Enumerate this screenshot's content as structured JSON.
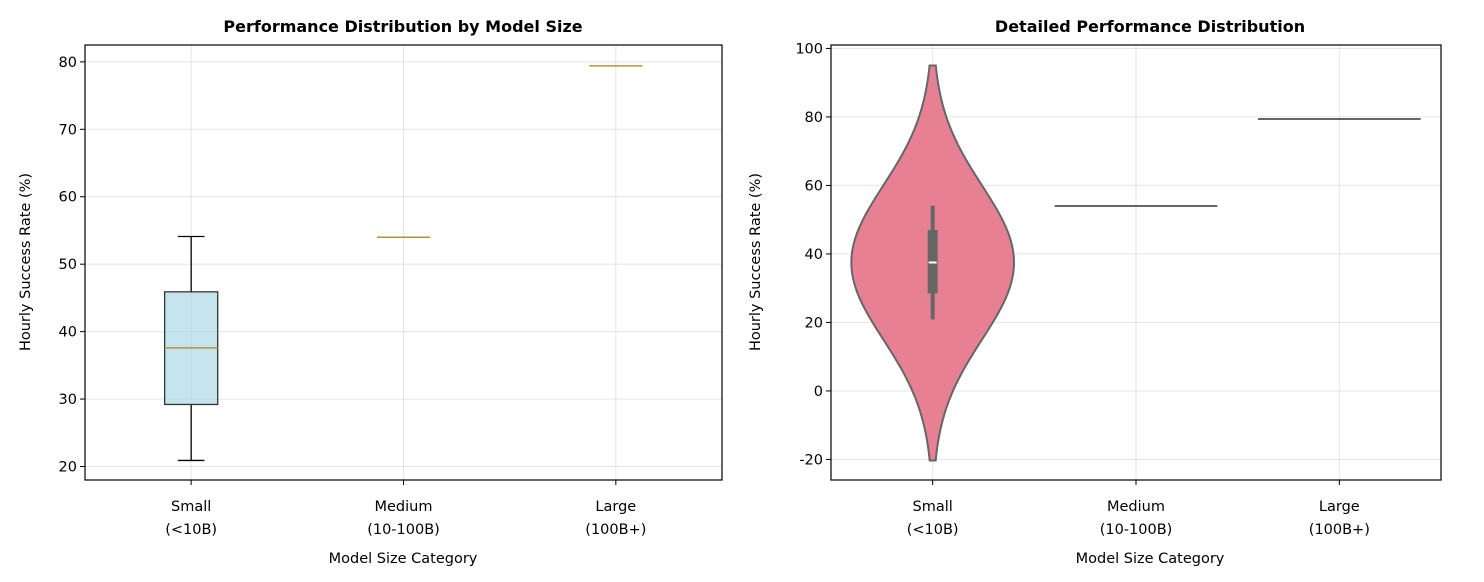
{
  "chart_data": [
    {
      "type": "box",
      "title": "Performance Distribution by Model Size",
      "xlabel": "Model Size Category",
      "ylabel": "Hourly Success Rate (%)",
      "ylim": [
        18,
        82.5
      ],
      "yticks": [
        20,
        30,
        40,
        50,
        60,
        70,
        80
      ],
      "categories": [
        {
          "label_line1": "Small",
          "label_line2": "(<10B)"
        },
        {
          "label_line1": "Medium",
          "label_line2": "(10-100B)"
        },
        {
          "label_line1": "Large",
          "label_line2": "(100B+)"
        }
      ],
      "boxes": [
        {
          "whisker_low": 20.9,
          "q1": 29.2,
          "median": 37.6,
          "q3": 45.9,
          "whisker_high": 54.1
        },
        {
          "whisker_low": 54.0,
          "q1": 54.0,
          "median": 54.0,
          "q3": 54.0,
          "whisker_high": 54.0
        },
        {
          "whisker_low": 79.4,
          "q1": 79.4,
          "median": 79.4,
          "q3": 79.4,
          "whisker_high": 79.4
        }
      ],
      "box_color": "#add8e6",
      "median_color": "#b8903a",
      "grid": true
    },
    {
      "type": "violin",
      "title": "Detailed Performance Distribution",
      "xlabel": "Model Size Category",
      "ylabel": "Hourly Success Rate (%)",
      "ylim": [
        -26,
        101
      ],
      "yticks": [
        -20,
        0,
        20,
        40,
        60,
        80,
        100
      ],
      "categories": [
        {
          "label_line1": "Small",
          "label_line2": "(<10B)"
        },
        {
          "label_line1": "Medium",
          "label_line2": "(10-100B)"
        },
        {
          "label_line1": "Large",
          "label_line2": "(100B+)"
        }
      ],
      "violins": [
        {
          "min": -20.3,
          "max": 95.0,
          "center": 37.5,
          "sigma": 22.5,
          "q1": 28.5,
          "median": 37.5,
          "q3": 47.0,
          "whisker_low": 20.9,
          "whisker_high": 54.1
        },
        {
          "constant": 54.0
        },
        {
          "constant": 79.4
        }
      ],
      "violin_color": "#e88094",
      "grid": true
    }
  ]
}
